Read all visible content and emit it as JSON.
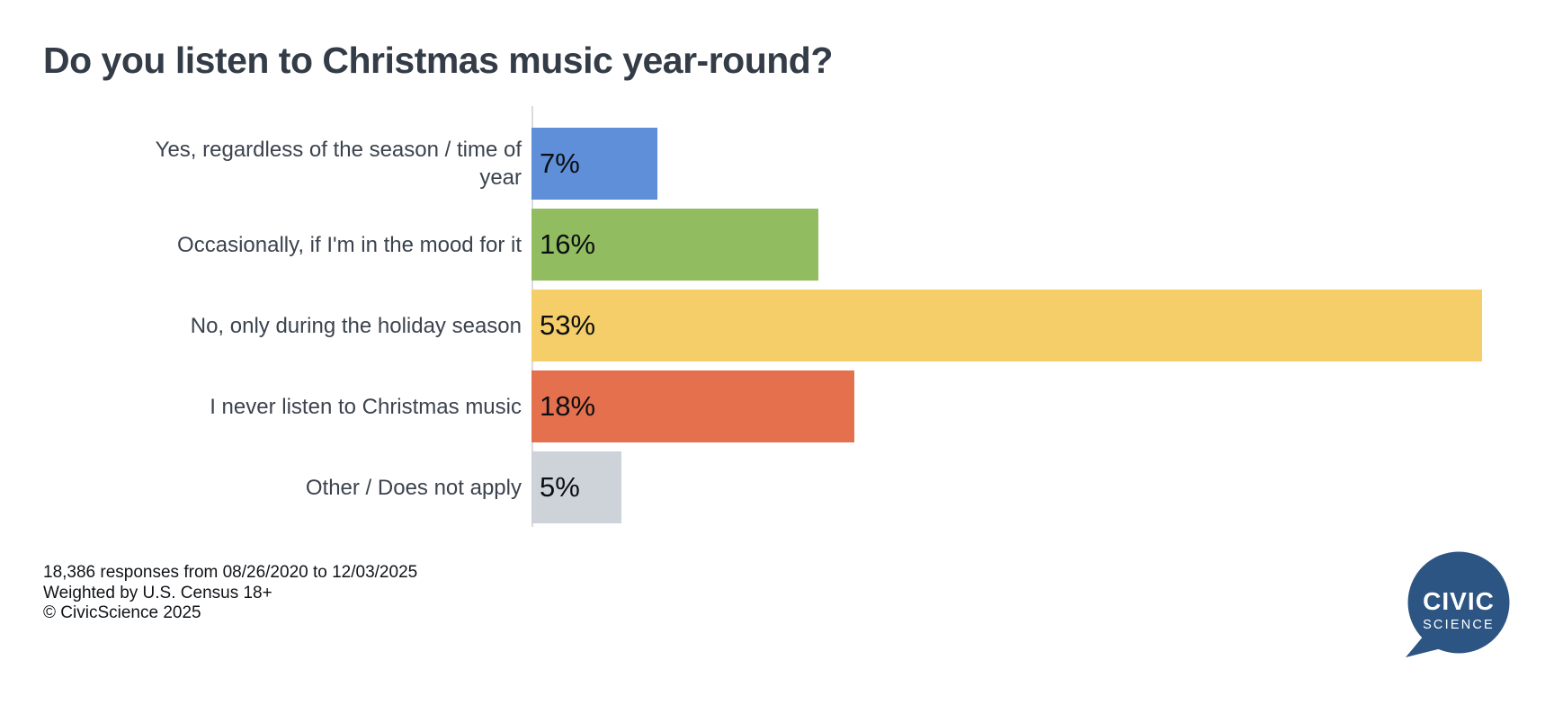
{
  "title": "Do you listen to Christmas music year-round?",
  "chart_data": {
    "type": "bar",
    "orientation": "horizontal",
    "title": "Do you listen to Christmas music year-round?",
    "categories": [
      "Yes, regardless of the season / time of year",
      "Occasionally, if I'm in the mood for it",
      "No, only during the holiday season",
      "I never listen to Christmas music",
      "Other / Does not apply"
    ],
    "values": [
      7,
      16,
      53,
      18,
      5
    ],
    "value_labels": [
      "7%",
      "16%",
      "53%",
      "18%",
      "5%"
    ],
    "bar_colors": [
      "#5f8fd8",
      "#92bc60",
      "#f6ce69",
      "#e4704e",
      "#ced3da"
    ],
    "xlabel": "",
    "ylabel": "",
    "xlim": [
      0,
      53
    ],
    "grid": false,
    "legend": "none",
    "value_label_position": "inside-left",
    "axis_line_color": "#d9dbde"
  },
  "footer": {
    "lines": [
      "18,386 responses from 08/26/2020 to 12/03/2025",
      "Weighted by U.S. Census 18+",
      "© CivicScience 2025"
    ]
  },
  "logo": {
    "line1": "CIVIC",
    "line2": "SCIENCE",
    "color": "#2d5583",
    "text_color": "#ffffff"
  },
  "colors": {
    "background": "#ffffff",
    "title_text": "#333c47",
    "category_text": "#3b434e",
    "footer_text": "#101418"
  }
}
